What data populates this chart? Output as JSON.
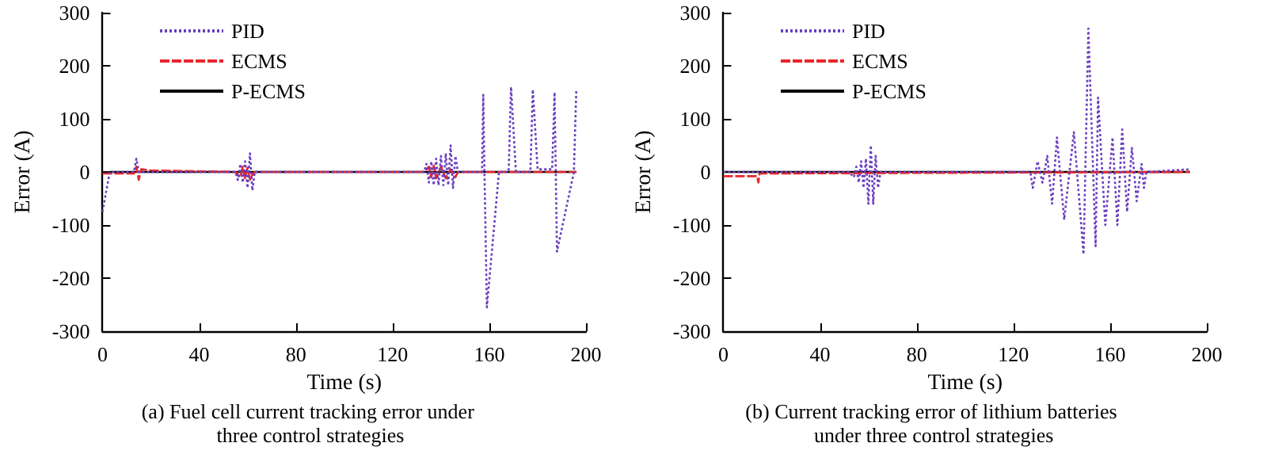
{
  "chart_data": [
    {
      "type": "line",
      "title": "(a) Fuel cell current tracking error under three control strategies",
      "xlabel": "Time (s)",
      "ylabel": "Error (A)",
      "xlim": [
        0,
        200
      ],
      "xticks": [
        0,
        40,
        80,
        120,
        160,
        200
      ],
      "ylim": [
        -300,
        300
      ],
      "yticks": [
        -300,
        -200,
        -100,
        0,
        100,
        200,
        300
      ],
      "grid": false,
      "legend": "top left",
      "marker": "none",
      "series": [
        {
          "name": "PID",
          "color": "#6a3fbf",
          "line_style": "dotted",
          "x": [
            0,
            3,
            13,
            14,
            15,
            55,
            56,
            57,
            58,
            59,
            60,
            61,
            62,
            63,
            133,
            134,
            135,
            136,
            137,
            138,
            139,
            140,
            141,
            142,
            143,
            144,
            145,
            146,
            147,
            157,
            157.5,
            158,
            159,
            164,
            168,
            169,
            171,
            177,
            178,
            180,
            186,
            187,
            188,
            195,
            196
          ],
          "values": [
            -75,
            0,
            0,
            25,
            0,
            0,
            -15,
            15,
            -20,
            20,
            -30,
            35,
            -35,
            0,
            0,
            15,
            -20,
            20,
            -25,
            25,
            -25,
            30,
            -25,
            35,
            -25,
            50,
            -30,
            30,
            0,
            0,
            145,
            0,
            -255,
            0,
            0,
            160,
            0,
            0,
            155,
            5,
            5,
            150,
            -150,
            0,
            155
          ]
        },
        {
          "name": "ECMS",
          "color": "#e8262a",
          "line_style": "dashed",
          "x": [
            0,
            13,
            14,
            15,
            16,
            20,
            55,
            57,
            58,
            59,
            60,
            61,
            62,
            63,
            133,
            135,
            136,
            137,
            138,
            140,
            142,
            144,
            146,
            147,
            196
          ],
          "values": [
            -3,
            -3,
            10,
            -15,
            5,
            3,
            0,
            -10,
            10,
            -12,
            8,
            -15,
            -5,
            0,
            0,
            10,
            -10,
            12,
            -12,
            10,
            -12,
            5,
            -10,
            0,
            0
          ]
        },
        {
          "name": "P-ECMS",
          "color": "#000000",
          "line_style": "solid",
          "x": [
            0,
            3,
            196
          ],
          "values": [
            -3,
            0,
            0
          ]
        }
      ]
    },
    {
      "type": "line",
      "title": "(b) Current tracking error of lithium batteries under three control strategies",
      "xlabel": "Time (s)",
      "ylabel": "Error (A)",
      "xlim": [
        0,
        200
      ],
      "xticks": [
        0,
        40,
        80,
        120,
        160,
        200
      ],
      "ylim": [
        -300,
        300
      ],
      "yticks": [
        -300,
        -200,
        -100,
        0,
        100,
        200,
        300
      ],
      "grid": false,
      "legend": "top left",
      "marker": "none",
      "series": [
        {
          "name": "PID",
          "color": "#6a3fbf",
          "line_style": "dotted",
          "x": [
            0,
            52,
            54,
            55,
            56,
            57,
            58,
            59,
            60,
            61,
            62,
            63,
            64,
            65,
            127,
            128,
            130,
            132,
            134,
            136,
            138,
            141,
            145,
            149,
            151,
            154,
            155,
            158,
            161,
            163,
            165,
            167,
            169,
            171,
            173,
            174,
            175,
            193
          ],
          "values": [
            0,
            0,
            -10,
            10,
            -20,
            20,
            -30,
            25,
            -60,
            50,
            -60,
            30,
            -30,
            0,
            0,
            -30,
            20,
            -20,
            30,
            -60,
            65,
            -90,
            75,
            -155,
            270,
            -140,
            140,
            -100,
            65,
            -100,
            80,
            -75,
            45,
            -55,
            15,
            -30,
            0,
            5
          ]
        },
        {
          "name": "ECMS",
          "color": "#e8262a",
          "line_style": "dashed",
          "x": [
            0,
            14,
            14.5,
            15,
            193
          ],
          "values": [
            -8,
            -8,
            -20,
            -3,
            0
          ]
        },
        {
          "name": "P-ECMS",
          "color": "#000000",
          "line_style": "solid",
          "x": [
            0,
            193
          ],
          "values": [
            0,
            0
          ]
        }
      ]
    }
  ]
}
